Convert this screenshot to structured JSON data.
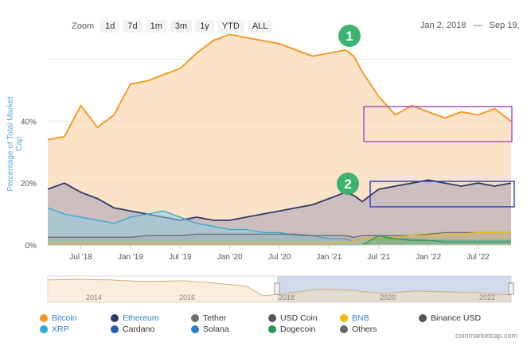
{
  "zoom": {
    "label": "Zoom",
    "buttons": [
      "1d",
      "7d",
      "1m",
      "3m",
      "1y",
      "YTD",
      "ALL"
    ]
  },
  "date_range": {
    "from": "Jan 2, 2018",
    "separator": "—",
    "to": "Sep 19,"
  },
  "annotations": [
    {
      "label": "1",
      "color": "#3cb371"
    },
    {
      "label": "2",
      "color": "#3cb371"
    }
  ],
  "navigator": {
    "year_labels": [
      "2014",
      "2016",
      "2018",
      "2020",
      "2022"
    ]
  },
  "legend": [
    {
      "name": "Bitcoin",
      "color": "#f7931a",
      "text_color": "#2f7ed8"
    },
    {
      "name": "Ethereum",
      "color": "#2e3a6b",
      "text_color": "#2f7ed8"
    },
    {
      "name": "Tether",
      "color": "#6e6e6e",
      "text_color": "#333333"
    },
    {
      "name": "USD Coin",
      "color": "#555555",
      "text_color": "#333333"
    },
    {
      "name": "BNB",
      "color": "#f0b90b",
      "text_color": "#2f7ed8"
    },
    {
      "name": "Binance USD",
      "color": "#555555",
      "text_color": "#333333"
    },
    {
      "name": "XRP",
      "color": "#2ba8d8",
      "text_color": "#2f7ed8"
    },
    {
      "name": "Cardano",
      "color": "#2a5bb0",
      "text_color": "#333333"
    },
    {
      "name": "Solana",
      "color": "#2c7fcf",
      "text_color": "#333333"
    },
    {
      "name": "Dogecoin",
      "color": "#1f9c4e",
      "text_color": "#333333"
    },
    {
      "name": "Others",
      "color": "#666666",
      "text_color": "#333333"
    }
  ],
  "credit": "coinmarketcap.com",
  "chart_data": {
    "type": "area",
    "title": "",
    "ylabel": "Percentage of Total Market Cap",
    "ylim": [
      0,
      65
    ],
    "yticks": [
      0,
      20,
      40
    ],
    "ytick_labels": [
      "0%",
      "20%",
      "40%"
    ],
    "xtick_labels": [
      "Jul '18",
      "Jan '19",
      "Jul '19",
      "Jan '20",
      "Jul '20",
      "Jan '21",
      "Jul '21",
      "Jan '22",
      "Jul '22"
    ],
    "x_months": [
      0,
      2,
      4,
      6,
      8,
      10,
      12,
      14,
      16,
      18,
      20,
      22,
      24,
      26,
      28,
      30,
      32,
      34,
      36,
      37,
      38,
      40,
      42,
      44,
      46,
      48,
      50,
      52,
      54,
      56
    ],
    "series": [
      {
        "name": "Bitcoin",
        "color": "#f7931a",
        "values": [
          34,
          35,
          45,
          38,
          42,
          52,
          53,
          55,
          57,
          62,
          66,
          68,
          67,
          66,
          65,
          63,
          61,
          62,
          63,
          61,
          56,
          48,
          42,
          45,
          43,
          41,
          43,
          42,
          44,
          40
        ]
      },
      {
        "name": "Ethereum",
        "color": "#2e3a6b",
        "values": [
          18,
          20,
          17,
          15,
          12,
          11,
          10,
          9,
          8,
          9,
          8,
          8,
          9,
          10,
          11,
          12,
          13,
          15,
          17,
          16,
          14,
          18,
          19,
          20,
          21,
          20,
          19,
          20,
          19,
          20
        ]
      },
      {
        "name": "XRP",
        "color": "#2ba8d8",
        "values": [
          12,
          10,
          9,
          8,
          7,
          9,
          10,
          11,
          9,
          7,
          6,
          5,
          5,
          4,
          4,
          3,
          3,
          2,
          2,
          1,
          2,
          2,
          2,
          2,
          1.5,
          1.5,
          1.5,
          1.5,
          1.5,
          1.5
        ]
      },
      {
        "name": "Tether",
        "color": "#6e6e6e",
        "values": [
          2.5,
          2.5,
          2.5,
          2.5,
          2.5,
          2.5,
          3,
          3,
          3,
          3.5,
          3.5,
          3.5,
          3.5,
          3.5,
          3.5,
          3.5,
          3,
          3,
          3,
          2.5,
          3,
          3,
          3,
          3,
          3.5,
          4,
          4,
          4,
          4,
          4
        ]
      },
      {
        "name": "BNB",
        "color": "#f0b90b",
        "values": [
          0.5,
          0.5,
          0.5,
          0.5,
          0.5,
          0.5,
          0.5,
          0.5,
          0.5,
          0.5,
          0.5,
          0.5,
          0.5,
          0.5,
          0.5,
          0.5,
          0.5,
          0.5,
          1,
          1,
          2,
          2,
          2.5,
          3,
          3,
          3.5,
          3.5,
          4,
          4,
          4
        ]
      },
      {
        "name": "Dogecoin",
        "color": "#1f9c4e",
        "values": [
          0,
          0,
          0,
          0,
          0,
          0,
          0,
          0,
          0,
          0,
          0,
          0,
          0,
          0,
          0,
          0,
          0,
          0,
          0,
          0,
          0,
          3,
          2,
          1.5,
          1.5,
          1,
          1,
          1,
          1,
          1
        ]
      }
    ],
    "grid": true,
    "legend_position": "bottom"
  }
}
